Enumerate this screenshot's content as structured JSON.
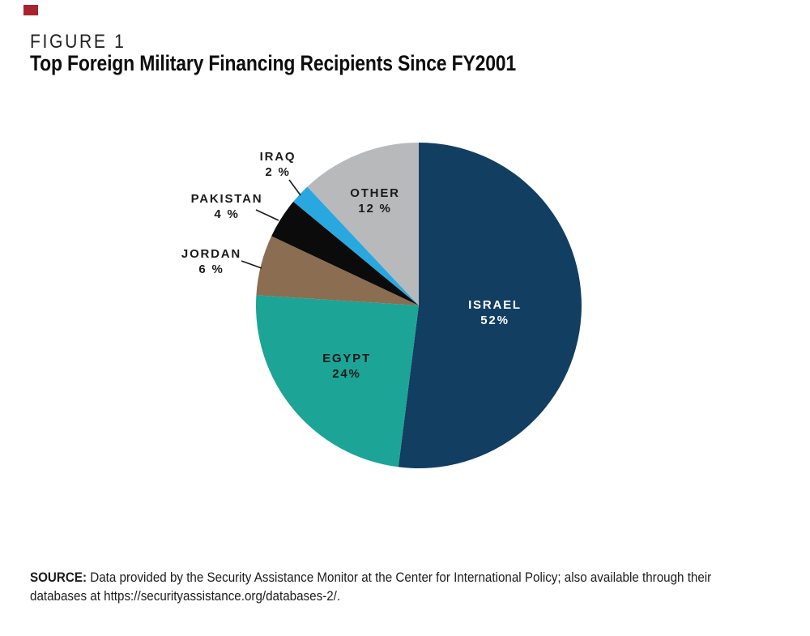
{
  "page": {
    "background": "#FFFFFF"
  },
  "brand": {
    "accent_color": "#A8232E"
  },
  "header": {
    "figure_label": "FIGURE 1",
    "title": "Top Foreign Military Financing Recipients Since FY2001"
  },
  "chart_data": {
    "type": "pie",
    "title": "Top Foreign Military Financing Recipients Since FY2001",
    "direction": "clockwise",
    "start_angle_deg": 0,
    "legend": "none",
    "slices": [
      {
        "label": "ISRAEL",
        "value": 52,
        "pct_label": "52%",
        "color": "#113E61",
        "text_color": "#FFFFFF",
        "label_placement": "inside"
      },
      {
        "label": "EGYPT",
        "value": 24,
        "pct_label": "24%",
        "color": "#1CA496",
        "text_color": "#1A1A1A",
        "label_placement": "inside"
      },
      {
        "label": "JORDAN",
        "value": 6,
        "pct_label": "6 %",
        "color": "#8B6D51",
        "text_color": "#1A1A1A",
        "label_placement": "outside-left"
      },
      {
        "label": "PAKISTAN",
        "value": 4,
        "pct_label": "4 %",
        "color": "#0B0B0B",
        "text_color": "#1A1A1A",
        "label_placement": "outside-left"
      },
      {
        "label": "IRAQ",
        "value": 2,
        "pct_label": "2 %",
        "color": "#29A8E0",
        "text_color": "#1A1A1A",
        "label_placement": "outside-left"
      },
      {
        "label": "OTHER",
        "value": 12,
        "pct_label": "12 %",
        "color": "#B7B9BB",
        "text_color": "#1A1A1A",
        "label_placement": "inside"
      }
    ]
  },
  "source": {
    "label": "SOURCE:",
    "text": "Data provided by the Security Assistance Monitor at the Center for International Policy; also available through their databases at https://securityassistance.org/databases-2/."
  }
}
